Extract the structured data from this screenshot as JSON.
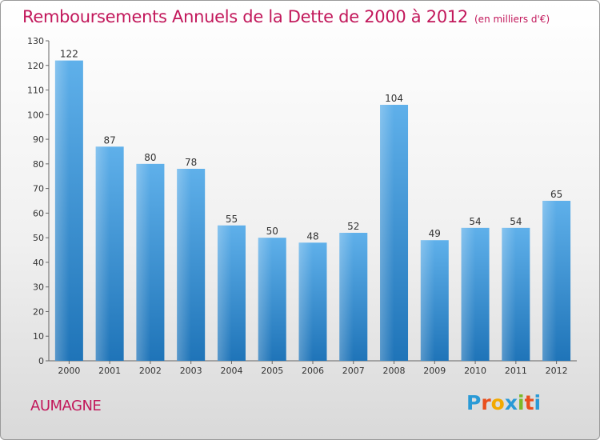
{
  "title": "Remboursements Annuels de la Dette de 2000 à 2012",
  "subtitle": "(en milliers d'€)",
  "commune": "AUMAGNE",
  "logo": {
    "letters": [
      "P",
      "r",
      "o",
      "x",
      "i",
      "t",
      "i"
    ],
    "colors": [
      "#2a9ad6",
      "#e94f1d",
      "#f2a900",
      "#2a9ad6",
      "#7cb928",
      "#e94f1d",
      "#2a9ad6"
    ]
  },
  "colors": {
    "title": "#c2185b",
    "bar_light": "#5fb0ea",
    "bar_dark": "#1f74b8"
  },
  "chart_data": {
    "type": "bar",
    "title": "Remboursements Annuels de la Dette de 2000 à 2012",
    "subtitle": "(en milliers d'€)",
    "categories": [
      "2000",
      "2001",
      "2002",
      "2003",
      "2004",
      "2005",
      "2006",
      "2007",
      "2008",
      "2009",
      "2010",
      "2011",
      "2012"
    ],
    "values": [
      122,
      87,
      80,
      78,
      55,
      50,
      48,
      52,
      104,
      49,
      54,
      54,
      65
    ],
    "ylim": [
      0,
      130
    ],
    "yticks": [
      0,
      10,
      20,
      30,
      40,
      50,
      60,
      70,
      80,
      90,
      100,
      110,
      120,
      130
    ],
    "grid": false,
    "legend": "none"
  }
}
